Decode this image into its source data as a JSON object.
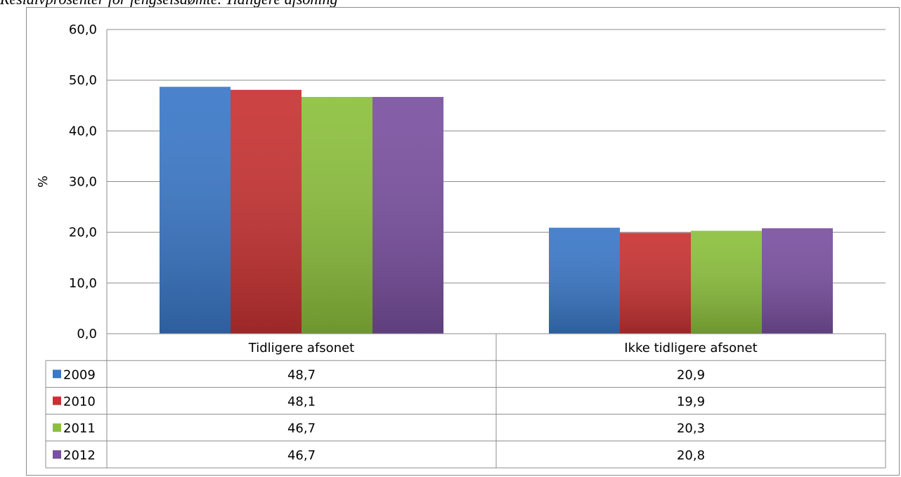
{
  "page": {
    "title": "Residivprosenter for fengselsdømte. Tidligere afsoning"
  },
  "colors": {
    "2009": "#3a78c8",
    "2010": "#c83232",
    "2011": "#8cc03c",
    "2012": "#7a50a0",
    "grid": "#8c8c8c"
  },
  "chart_data": {
    "type": "bar",
    "title": "",
    "xlabel": "",
    "ylabel": "%",
    "ylim": [
      0,
      60
    ],
    "yticks": [
      0,
      10,
      20,
      30,
      40,
      50,
      60
    ],
    "ytick_labels": [
      "0,0",
      "10,0",
      "20,0",
      "30,0",
      "40,0",
      "50,0",
      "60,0"
    ],
    "grid": true,
    "legend": "data-table",
    "categories": [
      "Tidligere afsonet",
      "Ikke tidligere afsonet"
    ],
    "series": [
      {
        "name": "2009",
        "values": [
          48.7,
          20.9
        ],
        "labels": [
          "48,7",
          "20,9"
        ]
      },
      {
        "name": "2010",
        "values": [
          48.1,
          19.9
        ],
        "labels": [
          "48,1",
          "19,9"
        ]
      },
      {
        "name": "2011",
        "values": [
          46.7,
          20.3
        ],
        "labels": [
          "46,7",
          "20,3"
        ]
      },
      {
        "name": "2012",
        "values": [
          46.7,
          20.8
        ],
        "labels": [
          "46,7",
          "20,8"
        ]
      }
    ]
  }
}
